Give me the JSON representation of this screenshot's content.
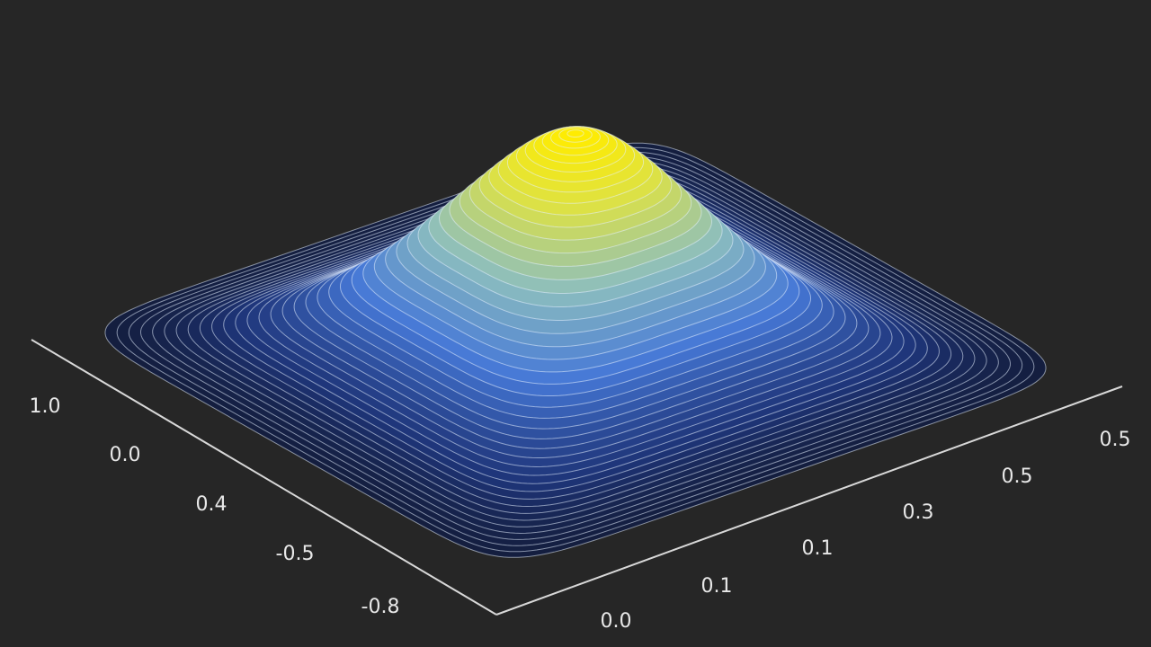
{
  "chart_data": {
    "type": "surface",
    "left_axis_labels": [
      "1.0",
      "0.0",
      "0.4",
      "-0.5",
      "-0.8"
    ],
    "right_axis_labels": [
      "0.0",
      "0.1",
      "0.1",
      "0.3",
      "0.5",
      "0.5"
    ]
  }
}
